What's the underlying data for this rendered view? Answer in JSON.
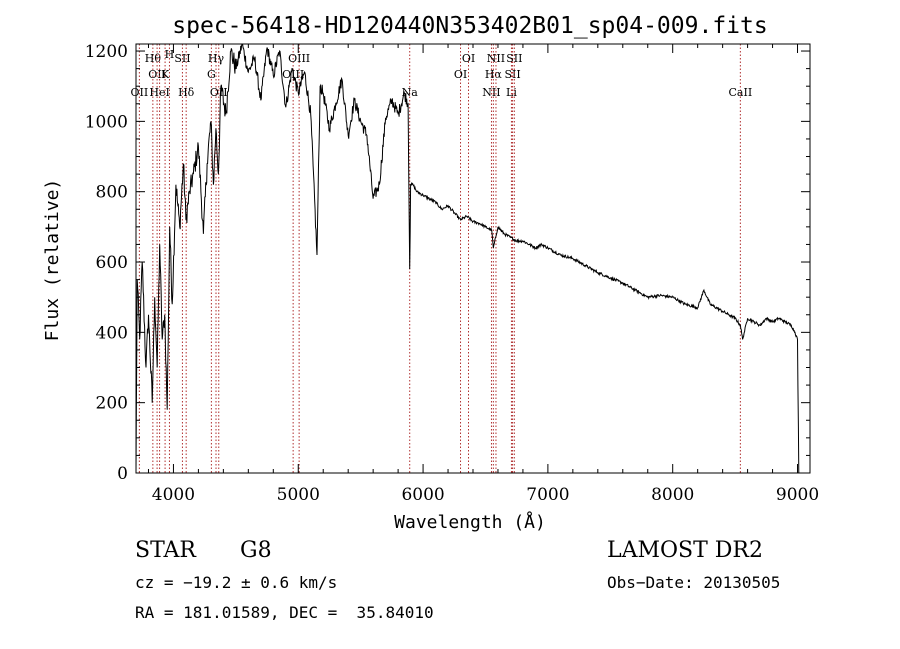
{
  "chart_data": {
    "type": "line",
    "title": "spec-56418-HD120440N353402B01_sp04-009.fits",
    "xlabel": "Wavelength (Å)",
    "ylabel": "Flux (relative)",
    "xlim": [
      3700,
      9100
    ],
    "ylim": [
      0,
      1220
    ],
    "xticks": [
      4000,
      5000,
      6000,
      7000,
      8000,
      9000
    ],
    "yticks": [
      0,
      200,
      400,
      600,
      800,
      1000,
      1200
    ],
    "grid": false,
    "series": [
      {
        "x": [
          3700,
          3710,
          3730,
          3750,
          3780,
          3800,
          3830,
          3850,
          3870,
          3890,
          3910,
          3930,
          3950,
          3970,
          3990,
          4020,
          4050,
          4080,
          4100,
          4130,
          4160,
          4200,
          4240,
          4270,
          4300,
          4320,
          4340,
          4360,
          4380,
          4420,
          4460,
          4500,
          4550,
          4600,
          4650,
          4700,
          4750,
          4800,
          4850,
          4900,
          4950,
          5000,
          5050,
          5100,
          5150,
          5175,
          5200,
          5250,
          5300,
          5350,
          5400,
          5450,
          5500,
          5550,
          5600,
          5650,
          5700,
          5750,
          5800,
          5850,
          5880,
          5893,
          5900,
          5920,
          5950,
          6000,
          6050,
          6100,
          6150,
          6200,
          6250,
          6300,
          6350,
          6400,
          6450,
          6500,
          6550,
          6563,
          6600,
          6650,
          6700,
          6750,
          6800,
          6850,
          6900,
          6950,
          7000,
          7100,
          7200,
          7300,
          7400,
          7500,
          7600,
          7700,
          7800,
          7900,
          8000,
          8100,
          8200,
          8250,
          8300,
          8400,
          8450,
          8500,
          8542,
          8560,
          8600,
          8650,
          8700,
          8750,
          8800,
          8850,
          8900,
          8950,
          8980,
          9000,
          9010
        ],
        "y": [
          0,
          550,
          380,
          600,
          300,
          450,
          200,
          500,
          300,
          650,
          380,
          450,
          180,
          700,
          480,
          820,
          700,
          880,
          720,
          800,
          850,
          930,
          680,
          880,
          1000,
          820,
          980,
          850,
          1100,
          1020,
          1200,
          1150,
          1220,
          1140,
          1180,
          1060,
          1210,
          1130,
          1200,
          1040,
          1150,
          1080,
          1140,
          1020,
          620,
          1100,
          1080,
          980,
          1050,
          1120,
          960,
          1060,
          1000,
          960,
          780,
          820,
          1010,
          1060,
          1020,
          1080,
          1050,
          580,
          820,
          820,
          800,
          790,
          780,
          770,
          750,
          760,
          740,
          720,
          730,
          715,
          710,
          700,
          690,
          640,
          700,
          680,
          670,
          660,
          660,
          650,
          640,
          650,
          640,
          620,
          610,
          590,
          570,
          555,
          540,
          520,
          500,
          505,
          500,
          480,
          470,
          520,
          480,
          460,
          450,
          440,
          420,
          380,
          440,
          430,
          420,
          440,
          430,
          440,
          430,
          420,
          400,
          380,
          0
        ]
      }
    ],
    "lines": [
      {
        "x": 3727,
        "label": "OII",
        "row": 3
      },
      {
        "x": 3835,
        "label": "Hθ",
        "row": 1
      },
      {
        "x": 3869,
        "label": "OII",
        "row": 2
      },
      {
        "x": 3889,
        "label": "HeI",
        "row": 3
      },
      {
        "x": 3933,
        "label": "K",
        "row": 2
      },
      {
        "x": 3968,
        "label": "H",
        "row": 0
      },
      {
        "x": 4072,
        "label": "SII",
        "row": 1
      },
      {
        "x": 4102,
        "label": "Hδ",
        "row": 3
      },
      {
        "x": 4304,
        "label": "G",
        "row": 2
      },
      {
        "x": 4341,
        "label": "Hγ",
        "row": 1
      },
      {
        "x": 4363,
        "label": "OII",
        "row": 3
      },
      {
        "x": 4959,
        "label": "OIII",
        "row": 2
      },
      {
        "x": 5007,
        "label": "OIII",
        "row": 1
      },
      {
        "x": 5893,
        "label": "Na",
        "row": 3
      },
      {
        "x": 6300,
        "label": "OI",
        "row": 2
      },
      {
        "x": 6364,
        "label": "OI",
        "row": 1
      },
      {
        "x": 6548,
        "label": "NII",
        "row": 3
      },
      {
        "x": 6563,
        "label": "Hα",
        "row": 2
      },
      {
        "x": 6584,
        "label": "NII",
        "row": 1
      },
      {
        "x": 6708,
        "label": "Li",
        "row": 3
      },
      {
        "x": 6717,
        "label": "SII",
        "row": 2
      },
      {
        "x": 6731,
        "label": "SII",
        "row": 1
      },
      {
        "x": 8542,
        "label": "CaII",
        "row": 3
      }
    ]
  },
  "info": {
    "object_class": "STAR",
    "subclass": "G8",
    "survey": "LAMOST DR2",
    "cz": "cz = −19.2 ± 0.6 km/s",
    "obs_date": "Obs−Date: 20130505",
    "coords": "RA = 181.01589, DEC =  35.84010"
  },
  "colors": {
    "spectrum": "#000000",
    "line_marker": "#b03030",
    "axes": "#000000"
  }
}
